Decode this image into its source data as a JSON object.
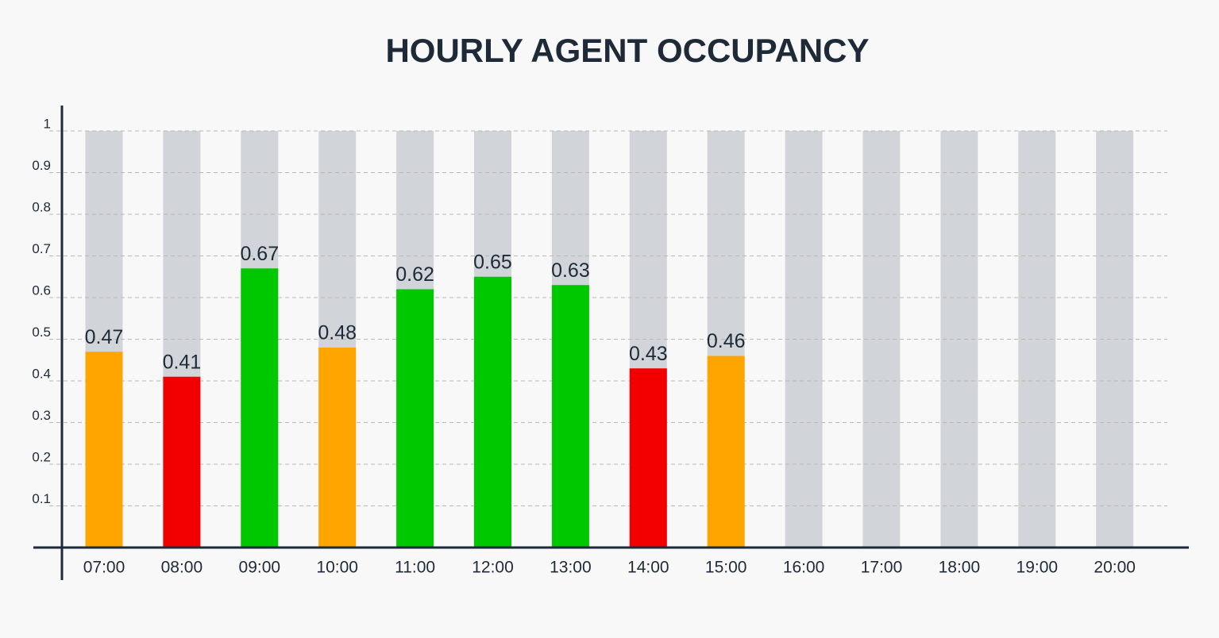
{
  "chart_data": {
    "type": "bar",
    "title": "HOURLY AGENT OCCUPANCY",
    "categories": [
      "07:00",
      "08:00",
      "09:00",
      "10:00",
      "11:00",
      "12:00",
      "13:00",
      "14:00",
      "15:00",
      "16:00",
      "17:00",
      "18:00",
      "19:00",
      "20:00"
    ],
    "values": [
      0.47,
      0.41,
      0.67,
      0.48,
      0.62,
      0.65,
      0.63,
      0.43,
      0.46,
      null,
      null,
      null,
      null,
      null
    ],
    "colors": [
      "#ffa500",
      "#f20000",
      "#00c800",
      "#ffa500",
      "#00c800",
      "#00c800",
      "#00c800",
      "#f20000",
      "#ffa500",
      null,
      null,
      null,
      null,
      null
    ],
    "ylim": [
      0,
      1
    ],
    "yticks": [
      0.1,
      0.2,
      0.3,
      0.4,
      0.5,
      0.6,
      0.7,
      0.8,
      0.9,
      1
    ],
    "grid": true
  }
}
